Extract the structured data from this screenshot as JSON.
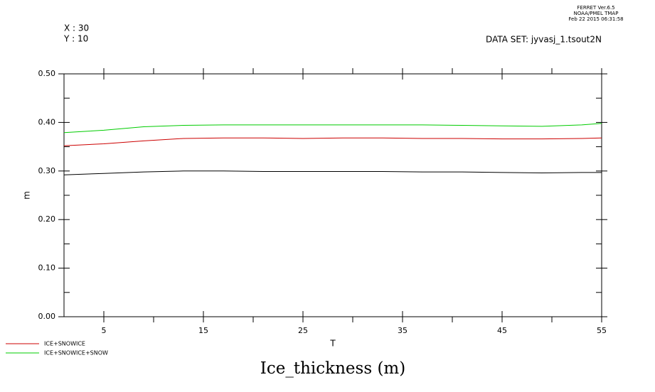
{
  "chart_data": {
    "type": "line",
    "header_lines": [
      "FERRET  Ver.6.5",
      "NOAA/PMEL TMAP",
      "Feb 22 2015 06:31:58"
    ],
    "annotations": [
      "X : 30",
      "Y : 10",
      "DATA SET: jyvasj_1.tsout2N"
    ],
    "title": "Ice_thickness (m)",
    "x_label": "T",
    "y_label": "m",
    "x": [
      1,
      5,
      9,
      13,
      17,
      21,
      25,
      29,
      33,
      37,
      41,
      45,
      49,
      53,
      55
    ],
    "series": [
      {
        "color": "#000000",
        "values": [
          0.292,
          0.295,
          0.298,
          0.3,
          0.3,
          0.299,
          0.299,
          0.299,
          0.299,
          0.298,
          0.298,
          0.297,
          0.296,
          0.297,
          0.297
        ]
      },
      {
        "name": "ICE+SNOWICE",
        "color": "#cc0000",
        "values": [
          0.352,
          0.356,
          0.362,
          0.367,
          0.368,
          0.368,
          0.367,
          0.368,
          0.368,
          0.367,
          0.367,
          0.366,
          0.366,
          0.367,
          0.368
        ]
      },
      {
        "name": "ICE+SNOWICE+SNOW",
        "color": "#00cc00",
        "values": [
          0.379,
          0.384,
          0.391,
          0.394,
          0.395,
          0.395,
          0.395,
          0.395,
          0.395,
          0.395,
          0.394,
          0.393,
          0.392,
          0.395,
          0.398
        ]
      }
    ],
    "xlim": [
      1,
      55
    ],
    "xticks": [
      5,
      15,
      25,
      35,
      45,
      55
    ],
    "xminorticks": [
      10,
      20,
      30,
      40,
      50
    ],
    "ylim": [
      0,
      0.5
    ],
    "yticks": [
      {
        "value": 0,
        "label": "0.00"
      },
      {
        "value": 0.1,
        "label": "0.10"
      },
      {
        "value": 0.2,
        "label": "0.20"
      },
      {
        "value": 0.3,
        "label": "0.30"
      },
      {
        "value": 0.4,
        "label": "0.40"
      },
      {
        "value": 0.5,
        "label": "0.50"
      }
    ],
    "yminorticks": [
      0.05,
      0.15,
      0.25,
      0.35,
      0.45
    ],
    "legend": "bottom-left"
  }
}
